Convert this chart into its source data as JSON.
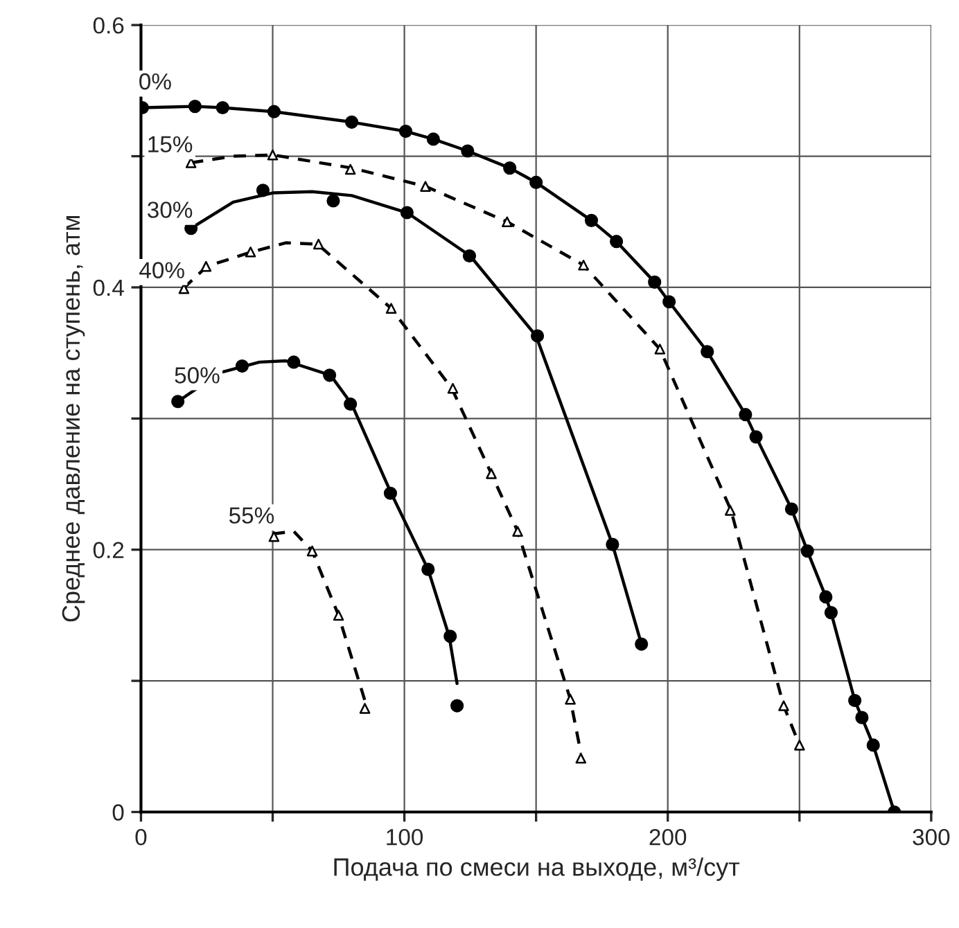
{
  "chart_data": {
    "type": "line",
    "xlabel": "Подача по смеси на выходе, м³/сут",
    "ylabel": "Среднее давление на ступень, атм",
    "xlim": [
      0,
      300
    ],
    "xticks": [
      0,
      {
        "value": 50,
        "label": null
      },
      100,
      {
        "value": 150,
        "label": null
      },
      200,
      {
        "value": 250,
        "label": null
      },
      300
    ],
    "ylim": [
      0,
      0.6
    ],
    "yticks": [
      0,
      {
        "value": 0.1,
        "label": null
      },
      0.2,
      {
        "value": 0.3,
        "label": null
      },
      0.4,
      {
        "value": 0.5,
        "label": null
      },
      0.6
    ],
    "grid": true,
    "series": [
      {
        "name": "0%",
        "color": "#000000",
        "line_style": "solid",
        "marker": "none",
        "x": [
          0.5,
          20.5,
          31,
          50.5,
          80,
          100.5,
          111,
          124,
          140,
          150,
          171,
          180.5,
          195,
          200.5,
          215,
          229.5,
          233.5,
          247,
          253,
          260,
          262,
          271,
          273.7,
          278,
          286
        ],
        "values": [
          0.537,
          0.538,
          0.537,
          0.534,
          0.526,
          0.519,
          0.513,
          0.504,
          0.491,
          0.48,
          0.451,
          0.435,
          0.404,
          0.389,
          0.351,
          0.303,
          0.286,
          0.231,
          0.199,
          0.164,
          0.152,
          0.085,
          0.072,
          0.051,
          0.0
        ]
      },
      {
        "type": "scatter",
        "color": "#000000",
        "marker": "circle",
        "x": [
          0.5,
          20.5,
          31,
          50.5,
          80,
          100.5,
          111,
          124,
          140,
          150,
          171,
          180.5,
          195,
          200.5,
          215,
          229.5,
          233.5,
          247,
          253,
          260,
          262,
          271,
          273.7,
          278,
          286
        ],
        "values": [
          0.537,
          0.538,
          0.537,
          0.534,
          0.526,
          0.519,
          0.513,
          0.504,
          0.491,
          0.48,
          0.451,
          0.435,
          0.404,
          0.389,
          0.351,
          0.303,
          0.286,
          0.231,
          0.199,
          0.164,
          0.152,
          0.085,
          0.072,
          0.051,
          0.0
        ]
      },
      {
        "name": "15%",
        "color": "#000000",
        "line_style": "dashed",
        "marker": "none",
        "x": [
          19,
          35,
          50,
          80,
          108,
          139,
          168,
          197,
          224,
          244,
          249
        ],
        "values": [
          0.495,
          0.5,
          0.501,
          0.491,
          0.477,
          0.45,
          0.417,
          0.353,
          0.23,
          0.081,
          0.056
        ]
      },
      {
        "type": "scatter",
        "color": "#000000",
        "marker": "triangle",
        "x": [
          19,
          50,
          79.5,
          108,
          139,
          168,
          197,
          223.7,
          244,
          250
        ],
        "values": [
          0.495,
          0.501,
          0.49,
          0.477,
          0.45,
          0.417,
          0.353,
          0.23,
          0.081,
          0.051
        ]
      },
      {
        "name": "30%",
        "color": "#000000",
        "line_style": "solid",
        "marker": "none",
        "x": [
          19,
          35,
          50,
          65,
          80,
          101,
          125,
          150,
          179,
          190
        ],
        "values": [
          0.445,
          0.465,
          0.472,
          0.473,
          0.47,
          0.457,
          0.424,
          0.363,
          0.204,
          0.128
        ]
      },
      {
        "type": "scatter",
        "color": "#000000",
        "marker": "circle",
        "x": [
          19,
          46.3,
          73,
          101,
          124.7,
          150.5,
          179,
          190
        ],
        "values": [
          0.445,
          0.474,
          0.466,
          0.457,
          0.424,
          0.363,
          0.204,
          0.128
        ]
      },
      {
        "name": "40%",
        "color": "#000000",
        "line_style": "dashed",
        "marker": "none",
        "x": [
          16,
          25,
          42,
          55,
          67,
          95,
          118,
          133,
          143,
          163,
          167
        ],
        "values": [
          0.399,
          0.416,
          0.427,
          0.434,
          0.433,
          0.384,
          0.323,
          0.258,
          0.214,
          0.086,
          0.045
        ]
      },
      {
        "type": "scatter",
        "color": "#000000",
        "marker": "triangle",
        "x": [
          16.3,
          24.7,
          41.6,
          67.4,
          95,
          118.4,
          133,
          143,
          163,
          167
        ],
        "values": [
          0.399,
          0.416,
          0.427,
          0.433,
          0.384,
          0.323,
          0.258,
          0.214,
          0.086,
          0.041
        ]
      },
      {
        "name": "50%",
        "color": "#000000",
        "line_style": "solid",
        "marker": "none",
        "x": [
          14,
          30,
          45,
          55,
          72,
          80,
          95,
          109,
          117,
          120
        ],
        "values": [
          0.313,
          0.335,
          0.343,
          0.344,
          0.333,
          0.311,
          0.243,
          0.185,
          0.134,
          0.098
        ]
      },
      {
        "type": "scatter",
        "color": "#000000",
        "marker": "circle",
        "x": [
          14,
          38.4,
          58,
          71.6,
          79.5,
          94.7,
          109,
          117.4,
          120
        ],
        "values": [
          0.313,
          0.34,
          0.343,
          0.333,
          0.311,
          0.243,
          0.185,
          0.134,
          0.081
        ]
      },
      {
        "name": "55%",
        "color": "#000000",
        "line_style": "dashed",
        "marker": "none",
        "x": [
          50,
          58,
          65,
          75,
          85
        ],
        "values": [
          0.212,
          0.214,
          0.199,
          0.15,
          0.085
        ]
      },
      {
        "type": "scatter",
        "color": "#000000",
        "marker": "triangle",
        "x": [
          50.5,
          65,
          75,
          85
        ],
        "values": [
          0.21,
          0.199,
          0.15,
          0.079
        ]
      }
    ]
  }
}
